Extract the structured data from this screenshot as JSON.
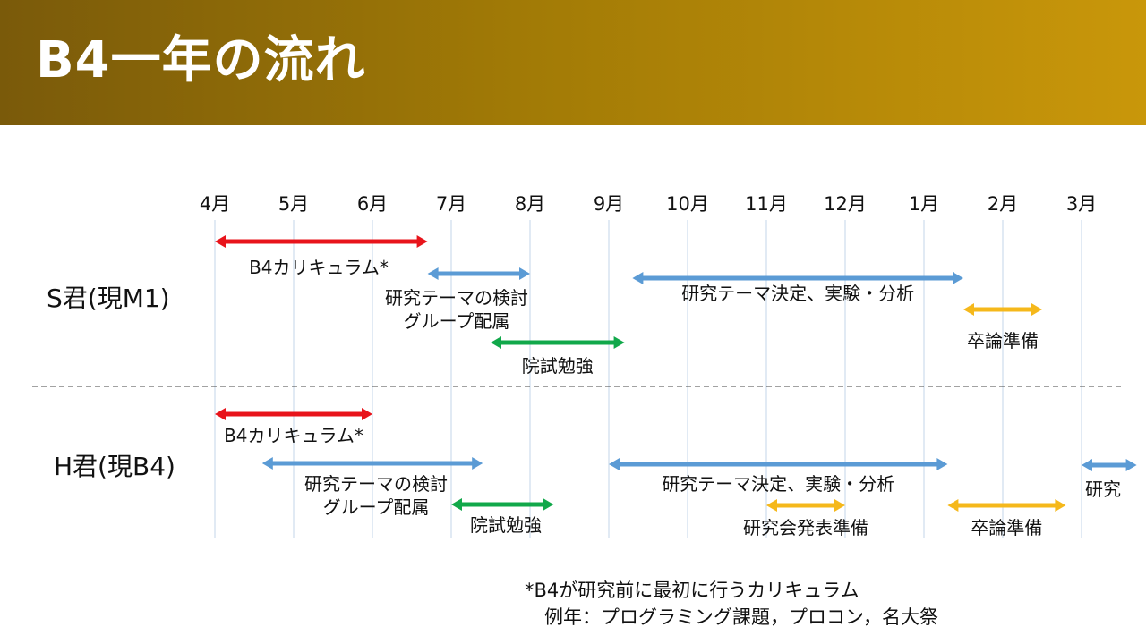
{
  "title": "B4一年の流れ",
  "months": [
    "4月",
    "5月",
    "6月",
    "7月",
    "8月",
    "9月",
    "10月",
    "11月",
    "12月",
    "1月",
    "2月",
    "3月"
  ],
  "rows": [
    {
      "label": "S君(現M1)",
      "bars": [
        {
          "label": "B4カリキュラム*",
          "start": 0.0,
          "end": 2.7,
          "color": "#e8141b"
        },
        {
          "label": "研究テーマの検討",
          "label2": "グループ配属",
          "start": 2.7,
          "end": 4.0,
          "color": "#5b9bd5"
        },
        {
          "label": "院試勉強",
          "start": 3.5,
          "end": 5.2,
          "color": "#11a84a"
        },
        {
          "label": "研究テーマ決定、実験・分析",
          "start": 5.3,
          "end": 9.5,
          "color": "#5b9bd5"
        },
        {
          "label": "卒論準備",
          "start": 9.5,
          "end": 10.5,
          "color": "#f5b81b"
        }
      ]
    },
    {
      "label": "H君(現B4)",
      "bars": [
        {
          "label": "B4カリキュラム*",
          "start": 0.0,
          "end": 2.0,
          "color": "#e8141b"
        },
        {
          "label": "研究テーマの検討",
          "label2": "グループ配属",
          "start": 0.6,
          "end": 3.4,
          "color": "#5b9bd5"
        },
        {
          "label": "院試勉強",
          "start": 3.0,
          "end": 4.3,
          "color": "#11a84a"
        },
        {
          "label": "研究テーマ決定、実験・分析",
          "start": 5.0,
          "end": 9.3,
          "color": "#5b9bd5"
        },
        {
          "label": "研究会発表準備",
          "start": 7.0,
          "end": 8.0,
          "color": "#f5b81b"
        },
        {
          "label": "卒論準備",
          "start": 9.3,
          "end": 10.8,
          "color": "#f5b81b"
        },
        {
          "label": "研究",
          "start": 11.0,
          "end": 11.7,
          "color": "#5b9bd5"
        }
      ]
    }
  ],
  "footnote": {
    "line1": "*B4が研究前に最初に行うカリキュラム",
    "line2": "例年：プログラミング課題，プロコン，名大祭"
  }
}
